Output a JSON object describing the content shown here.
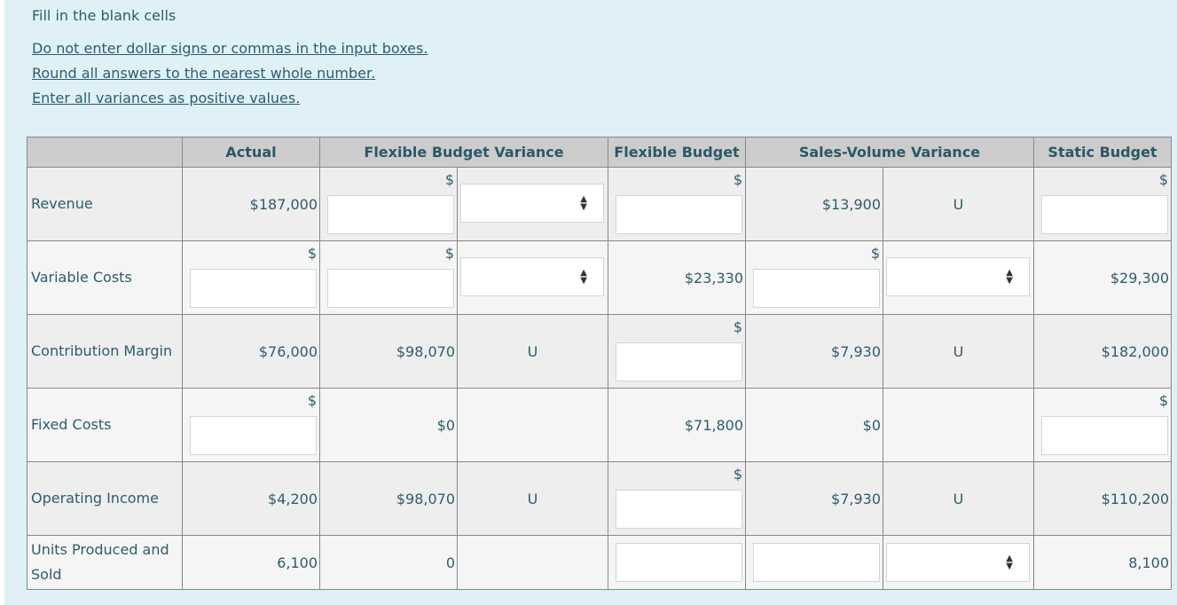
{
  "instructions": {
    "title": "Fill in the blank cells",
    "notes": [
      "Do not enter dollar signs or commas in the input boxes.",
      "Round all answers to the nearest whole number.",
      "Enter all variances as positive values."
    ]
  },
  "colors": {
    "background": "#dff1f7",
    "header": "#cccccc",
    "text": "#2e5d6c"
  },
  "table": {
    "headers": [
      "",
      "Actual",
      "Flexible Budget Variance",
      "Flexible Budget",
      "Sales-Volume Variance",
      "Static Budget"
    ],
    "rows": [
      {
        "label": "Revenue",
        "cells": [
          {
            "t": "val",
            "v": "$187,000"
          },
          {
            "t": "input",
            "dollar": "$"
          },
          {
            "t": "select"
          },
          {
            "t": "input",
            "dollar": "$"
          },
          {
            "t": "val",
            "v": "$13,900"
          },
          {
            "t": "ctr",
            "v": "U"
          },
          {
            "t": "input",
            "dollar": "$"
          }
        ]
      },
      {
        "label": "Variable Costs",
        "cells": [
          {
            "t": "input",
            "dollar": "$"
          },
          {
            "t": "input",
            "dollar": "$"
          },
          {
            "t": "select"
          },
          {
            "t": "val",
            "v": "$23,330"
          },
          {
            "t": "input",
            "dollar": "$"
          },
          {
            "t": "select"
          },
          {
            "t": "val",
            "v": "$29,300"
          }
        ]
      },
      {
        "label": "Contribution Margin",
        "cells": [
          {
            "t": "val",
            "v": "$76,000"
          },
          {
            "t": "val",
            "v": "$98,070"
          },
          {
            "t": "ctr",
            "v": "U"
          },
          {
            "t": "input",
            "dollar": "$"
          },
          {
            "t": "val",
            "v": "$7,930"
          },
          {
            "t": "ctr",
            "v": "U"
          },
          {
            "t": "val",
            "v": "$182,000"
          }
        ]
      },
      {
        "label": "Fixed Costs",
        "cells": [
          {
            "t": "input",
            "dollar": "$"
          },
          {
            "t": "val",
            "v": "$0"
          },
          {
            "t": "empty"
          },
          {
            "t": "val",
            "v": "$71,800"
          },
          {
            "t": "val",
            "v": "$0"
          },
          {
            "t": "empty"
          },
          {
            "t": "input",
            "dollar": "$"
          }
        ]
      },
      {
        "label": "Operating Income",
        "cells": [
          {
            "t": "val",
            "v": "$4,200"
          },
          {
            "t": "val",
            "v": "$98,070"
          },
          {
            "t": "ctr",
            "v": "U"
          },
          {
            "t": "input",
            "dollar": "$"
          },
          {
            "t": "val",
            "v": "$7,930"
          },
          {
            "t": "ctr",
            "v": "U"
          },
          {
            "t": "val",
            "v": "$110,200"
          }
        ]
      },
      {
        "label": "Units Produced and Sold",
        "cells": [
          {
            "t": "val",
            "v": "6,100"
          },
          {
            "t": "val",
            "v": "0"
          },
          {
            "t": "empty"
          },
          {
            "t": "inputmid"
          },
          {
            "t": "inputmid"
          },
          {
            "t": "selectmid"
          },
          {
            "t": "val",
            "v": "8,100"
          }
        ]
      }
    ]
  }
}
